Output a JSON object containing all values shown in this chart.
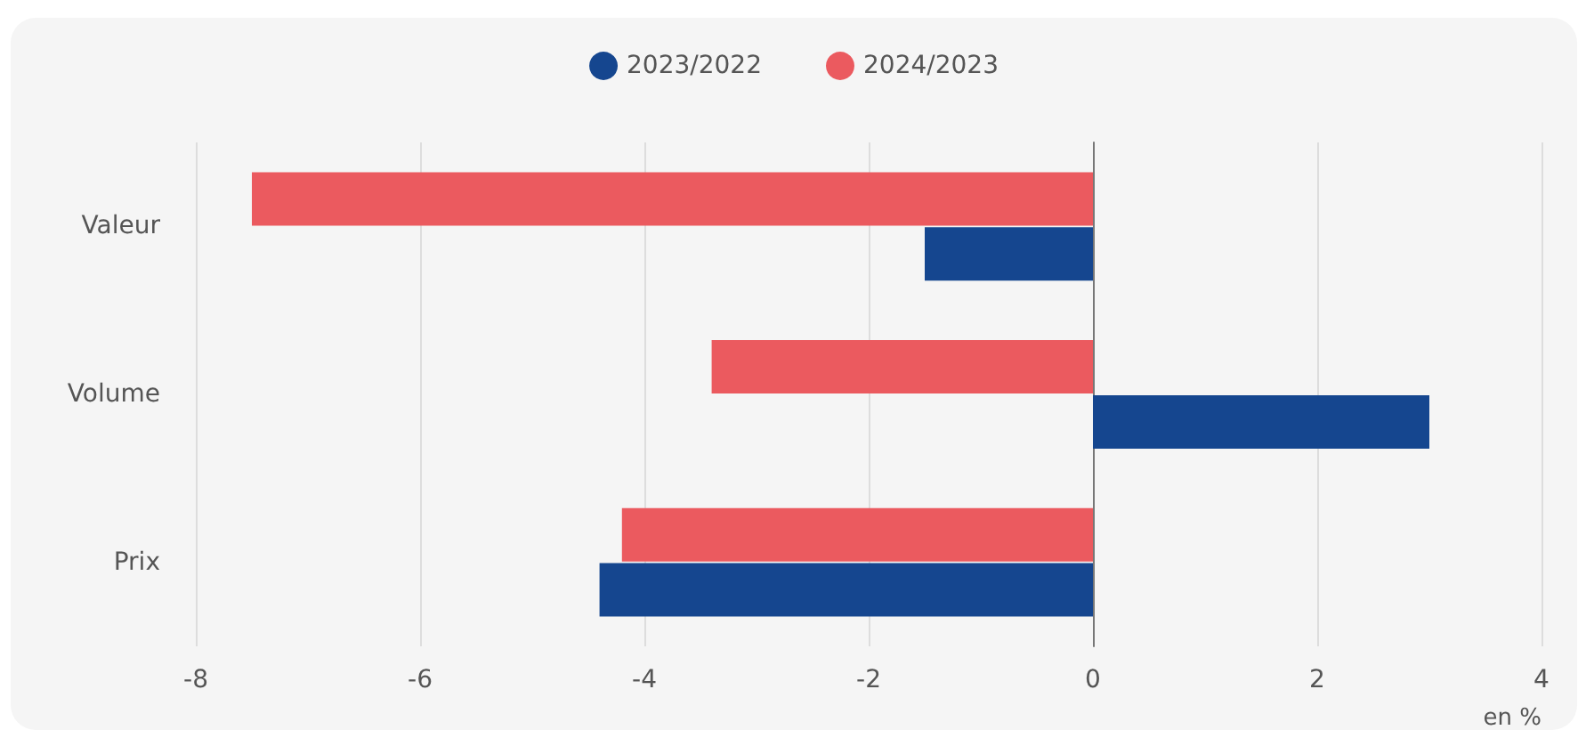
{
  "chart_data": {
    "type": "bar",
    "orientation": "horizontal",
    "xlabel": "en %",
    "categories": [
      "Valeur",
      "Volume",
      "Prix"
    ],
    "series": [
      {
        "name": "2023/2022",
        "color": "#15468f",
        "values": [
          -1.5,
          3.0,
          -4.4
        ]
      },
      {
        "name": "2024/2023",
        "color": "#eb5a5f",
        "values": [
          -7.5,
          -3.4,
          -4.2
        ]
      }
    ],
    "xlim": [
      -8,
      4
    ],
    "xticks": [
      -8,
      -6,
      -4,
      -2,
      0,
      2,
      4
    ],
    "grid": "x",
    "legend": "top"
  }
}
